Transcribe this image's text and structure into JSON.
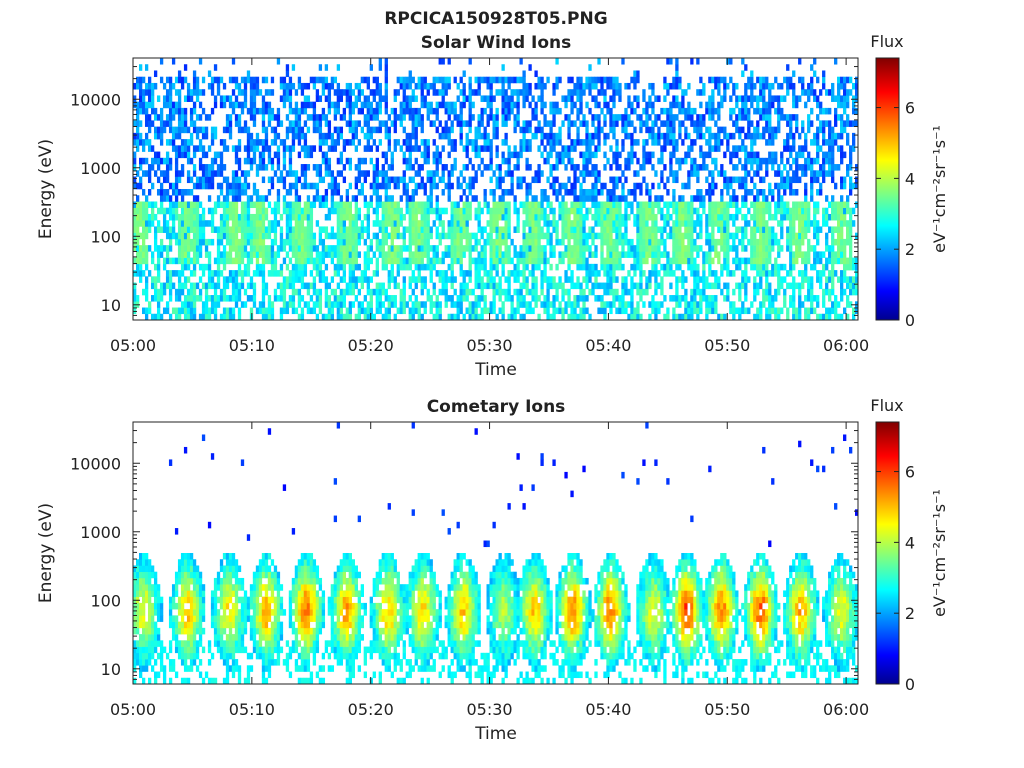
{
  "figure_title": "RPCICA150928T05.PNG",
  "chart_data": [
    {
      "type": "heatmap",
      "title": "Solar Wind Ions",
      "xlabel": "Time",
      "ylabel": "Energy (eV)",
      "x_ticks": [
        "05:00",
        "05:10",
        "05:20",
        "05:30",
        "05:40",
        "05:50",
        "06:00"
      ],
      "x_range": [
        "05:00",
        "06:01"
      ],
      "y_scale": "log",
      "y_ticks": [
        "10",
        "100",
        "1000",
        "10000"
      ],
      "y_range": [
        6,
        40000
      ],
      "colorbar": {
        "label": "Flux",
        "units": "eV⁻¹cm⁻²sr⁻¹s⁻¹",
        "ticks": [
          "0",
          "2",
          "4",
          "6"
        ],
        "range": [
          0,
          7.4
        ],
        "colormap": "jet"
      },
      "pattern": "broad diffuse ion population spanning ~6 eV to ~30 keV at low flux (~1–2.5), with periodic ~4-minute enhancements near 50–300 eV (~3)",
      "period_min": 4.1,
      "peak_times": [
        "05:00.5",
        "05:04.6",
        "05:08.6",
        "05:10.7",
        "05:14.2",
        "05:18.1",
        "05:21.8",
        "05:24.0",
        "05:27.6",
        "05:30.8",
        "05:33.7",
        "05:37.0",
        "05:40.1",
        "05:43.4",
        "05:46.2",
        "05:49.2",
        "05:52.8",
        "05:56.1",
        "05:59.6"
      ]
    },
    {
      "type": "heatmap",
      "title": "Cometary Ions",
      "xlabel": "Time",
      "ylabel": "Energy (eV)",
      "x_ticks": [
        "05:00",
        "05:10",
        "05:20",
        "05:30",
        "05:40",
        "05:50",
        "06:00"
      ],
      "x_range": [
        "05:00",
        "06:01"
      ],
      "y_scale": "log",
      "y_ticks": [
        "10",
        "100",
        "1000",
        "10000"
      ],
      "y_range": [
        6,
        40000
      ],
      "colorbar": {
        "label": "Flux",
        "units": "eV⁻¹cm⁻²sr⁻¹s⁻¹",
        "ticks": [
          "0",
          "2",
          "4",
          "6"
        ],
        "range": [
          0,
          7.4
        ],
        "colormap": "jet"
      },
      "pattern": "periodic bursts every ~3–4 minutes, intense between ~20 and ~300 eV (flux 4–6.5), sparse isolated counts up to ~15 keV",
      "peak_times": [
        "05:00.9",
        "05:04.6",
        "05:08.1",
        "05:11.2",
        "05:14.6",
        "05:18.0",
        "05:21.5",
        "05:24.4",
        "05:27.8",
        "05:31.2",
        "05:33.8",
        "05:37.0",
        "05:40.2",
        "05:43.8",
        "05:46.6",
        "05:49.5",
        "05:52.8",
        "05:56.2",
        "05:59.6"
      ],
      "peak_flux": [
        4.5,
        5.0,
        4.7,
        5.2,
        5.6,
        5.3,
        5.0,
        4.9,
        5.0,
        4.0,
        5.0,
        5.5,
        5.6,
        4.4,
        6.0,
        5.5,
        5.8,
        5.2,
        4.5
      ]
    }
  ]
}
